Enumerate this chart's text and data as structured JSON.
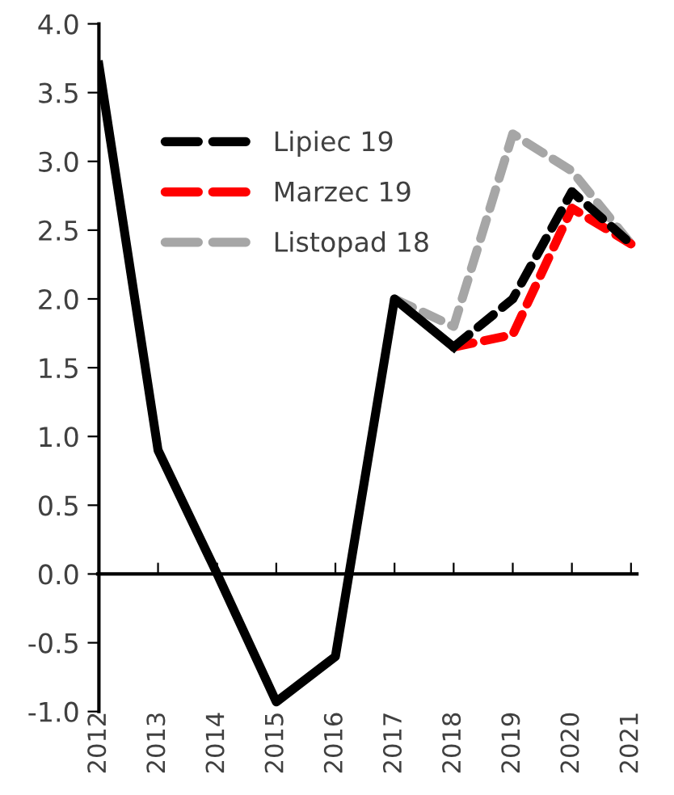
{
  "chart_data": {
    "type": "line",
    "categories": [
      "2012",
      "2013",
      "2014",
      "2015",
      "2016",
      "2017",
      "2018",
      "2019",
      "2020",
      "2021"
    ],
    "series": [
      {
        "name": "Listopad 18",
        "color": "#a6a6a6",
        "line_style": "dashed",
        "values": [
          null,
          null,
          null,
          null,
          null,
          2.0,
          1.8,
          3.2,
          2.93,
          2.4
        ]
      },
      {
        "name": "Marzec 19",
        "color": "#ff0000",
        "line_style": "dashed",
        "values": [
          null,
          null,
          null,
          null,
          null,
          null,
          1.65,
          1.74,
          2.66,
          2.4
        ]
      },
      {
        "name": "Lipiec 19",
        "color": "#000000",
        "line_style": "dashed",
        "values": [
          null,
          null,
          null,
          null,
          null,
          null,
          1.65,
          2.0,
          2.78,
          2.4
        ]
      },
      {
        "color": "#000000",
        "line_style": "solid",
        "values": [
          3.7,
          0.9,
          0.0,
          -0.93,
          -0.6,
          2.0,
          1.65,
          null,
          null,
          null
        ]
      }
    ],
    "ylim": [
      -1.0,
      4.0
    ],
    "yticks": [
      {
        "value": -1.0,
        "label": "-1.0"
      },
      {
        "value": -0.5,
        "label": "-0.5"
      },
      {
        "value": 0,
        "label": "0.0"
      },
      {
        "value": 0.5,
        "label": "0.5"
      },
      {
        "value": 1.0,
        "label": "1.0"
      },
      {
        "value": 1.5,
        "label": "1.5"
      },
      {
        "value": 2.0,
        "label": "2.0"
      },
      {
        "value": 2.5,
        "label": "2.5"
      },
      {
        "value": 3.0,
        "label": "3.0"
      },
      {
        "value": 3.5,
        "label": "3.5"
      },
      {
        "value": 4.0,
        "label": "4.0"
      }
    ],
    "legend": "top left",
    "marker": "none"
  }
}
